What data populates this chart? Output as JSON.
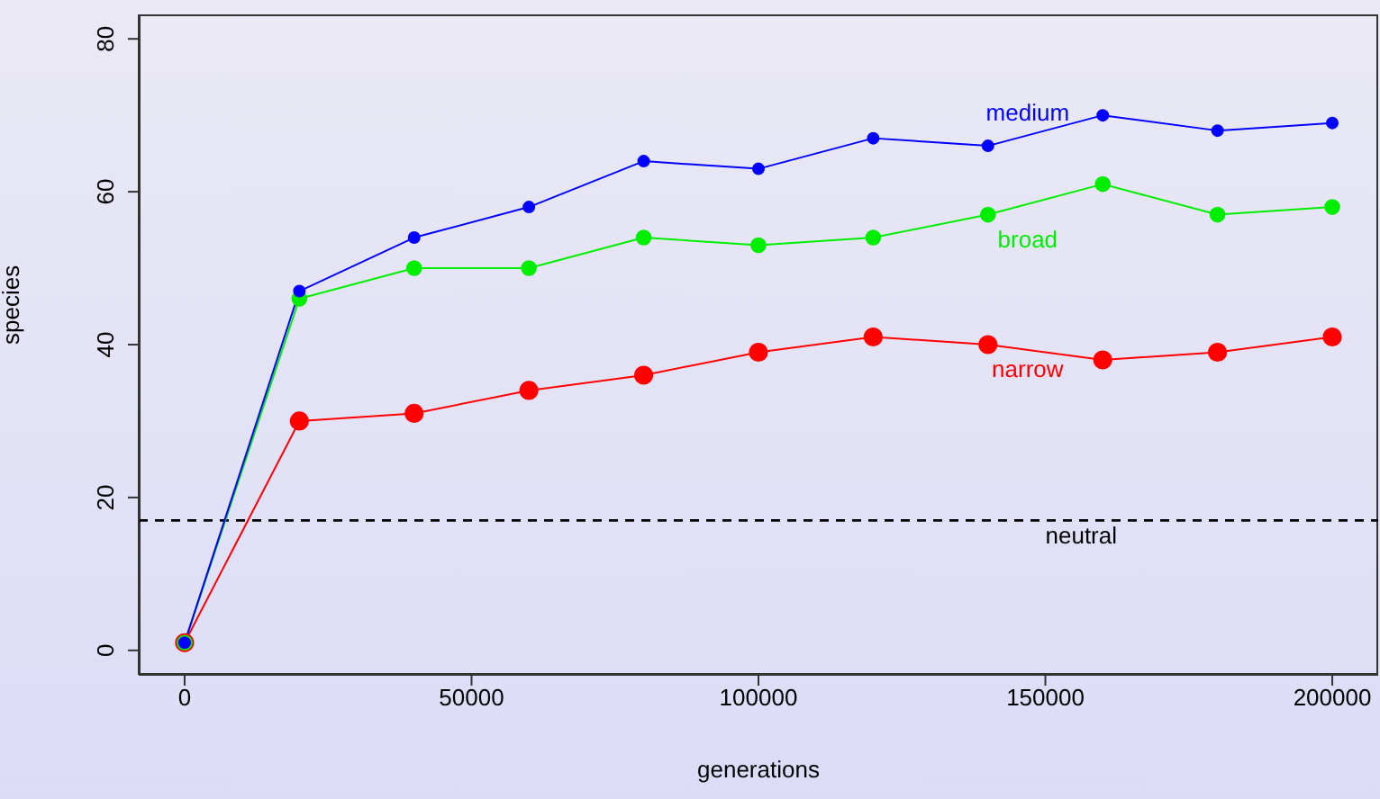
{
  "chart_data": {
    "type": "line",
    "xlabel": "generations",
    "ylabel": "species",
    "x": [
      0,
      20000,
      40000,
      60000,
      80000,
      100000,
      120000,
      140000,
      160000,
      180000,
      200000
    ],
    "series": [
      {
        "name": "medium",
        "color": "#0000ff",
        "values": [
          1,
          47,
          54,
          58,
          64,
          63,
          67,
          66,
          70,
          68,
          69
        ]
      },
      {
        "name": "broad",
        "color": "#00ee00",
        "values": [
          1,
          46,
          50,
          50,
          54,
          53,
          54,
          57,
          61,
          57,
          58
        ]
      },
      {
        "name": "narrow",
        "color": "#ff0000",
        "values": [
          1,
          30,
          31,
          34,
          36,
          39,
          41,
          40,
          38,
          39,
          41
        ]
      }
    ],
    "xlim": [
      -8000,
      208000
    ],
    "xticks": [
      0,
      50000,
      100000,
      150000,
      200000
    ],
    "ylim": [
      -3.2,
      83.2
    ],
    "yticks": [
      0,
      20,
      40,
      60,
      80
    ],
    "ref_lines": [
      {
        "axis": "y",
        "value": 17,
        "label": "neutral",
        "color": "#000000",
        "line_style": "dashed"
      }
    ],
    "marker": "circle",
    "grid": false,
    "legend": false
  }
}
